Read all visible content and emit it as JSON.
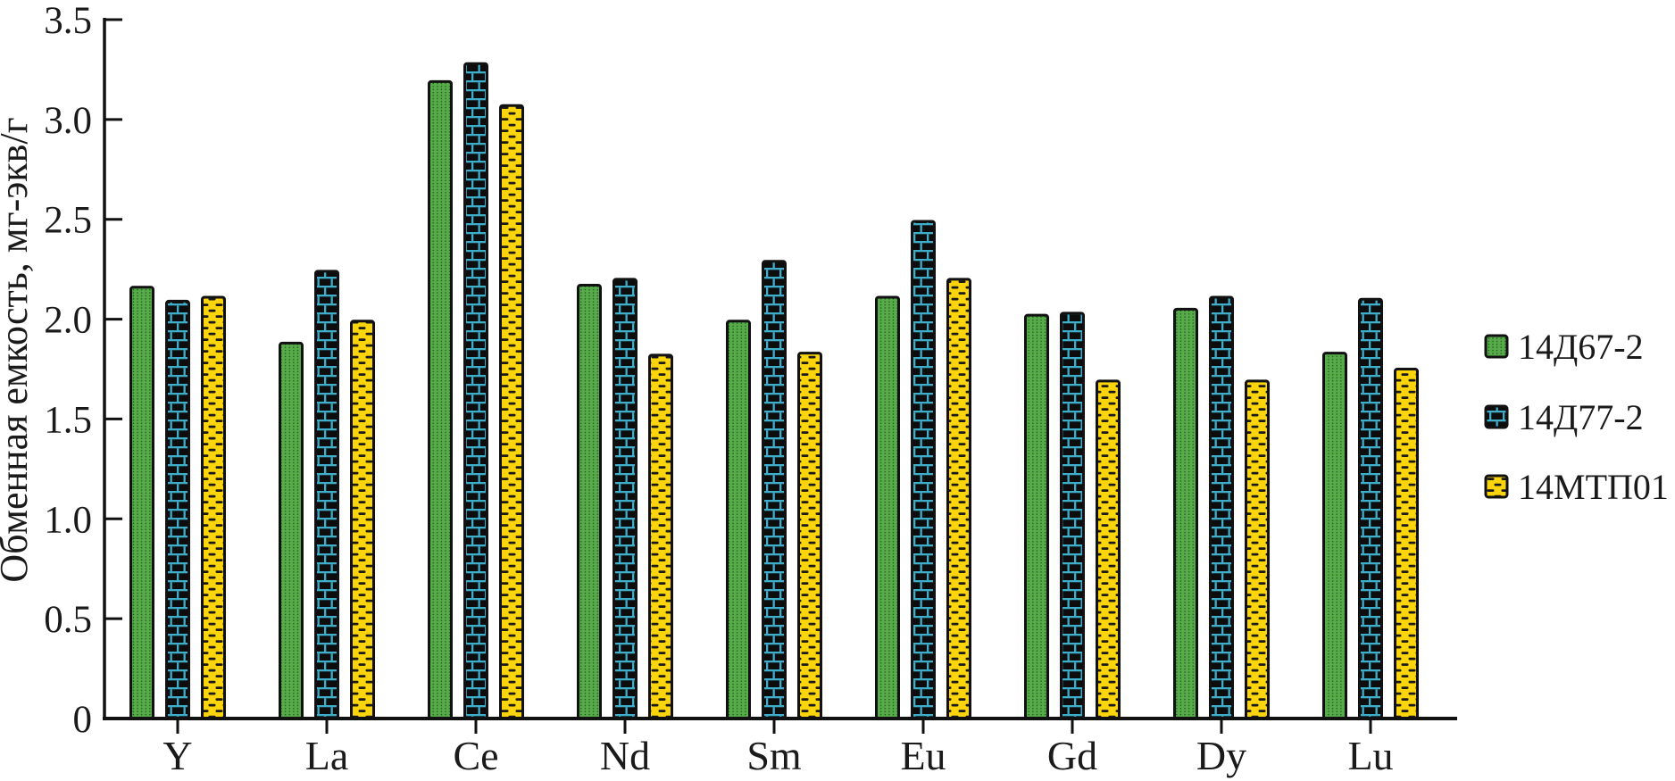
{
  "chart_data": {
    "type": "bar",
    "title": "",
    "xlabel": "",
    "ylabel": "Обменная емкость, мг-экв/г",
    "ylim": [
      0,
      3.5
    ],
    "ytick_step": 0.5,
    "ytick_labels": [
      "0",
      "0.5",
      "1.0",
      "1.5",
      "2.0",
      "2.5",
      "3.0",
      "3.5"
    ],
    "categories": [
      "Y",
      "La",
      "Ce",
      "Nd",
      "Sm",
      "Eu",
      "Gd",
      "Dy",
      "Lu"
    ],
    "series": [
      {
        "name": "14Д67-2",
        "pattern": "green-dotted-columns",
        "color": "#58AB49",
        "values": [
          2.16,
          1.88,
          3.19,
          2.17,
          1.99,
          2.11,
          2.02,
          2.05,
          1.83
        ]
      },
      {
        "name": "14Д77-2",
        "pattern": "teal-brick-on-black",
        "color": "#3FAECB",
        "values": [
          2.09,
          2.24,
          3.28,
          2.2,
          2.29,
          2.49,
          2.03,
          2.11,
          2.1
        ]
      },
      {
        "name": "14МТП01",
        "pattern": "yellow-black-dashes",
        "color": "#FBD40B",
        "values": [
          2.11,
          1.99,
          3.07,
          1.82,
          1.83,
          2.2,
          1.69,
          1.69,
          1.75
        ]
      }
    ],
    "legend_position": "right",
    "grid": false
  },
  "colors": {
    "axis": "#111111",
    "text": "#1a1a1a",
    "green_fill": "#58AB49",
    "green_dot": "#1d5a21",
    "brick_bg": "#0d0d0d",
    "brick_line": "#3FAECB",
    "yellow_fill": "#FBD40B",
    "dash": "#1a1a1a"
  }
}
